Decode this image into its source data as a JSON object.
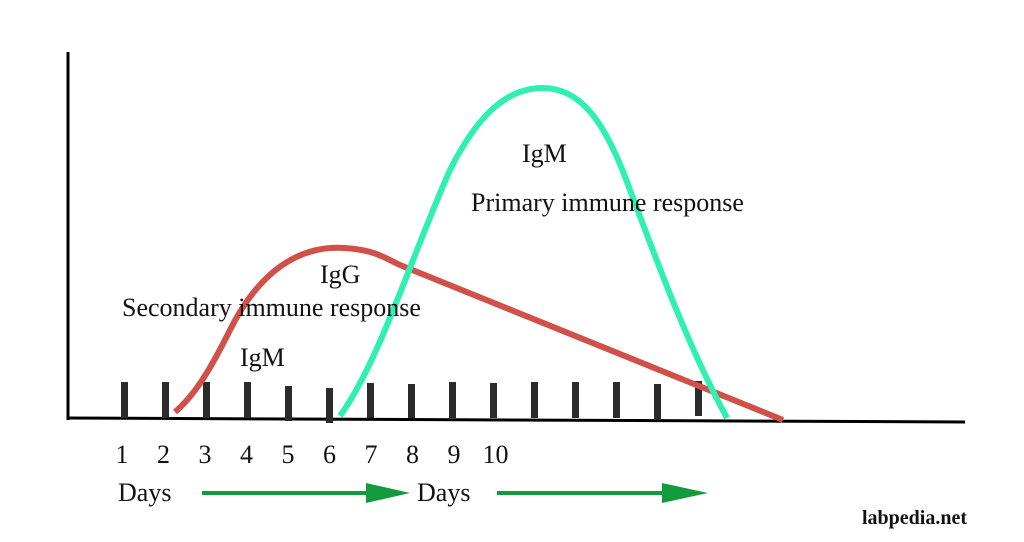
{
  "labels": {
    "primary_antibody": "IgM",
    "primary_response": "Primary immune response",
    "secondary_igg": "IgG",
    "secondary_response": "Secondary immune response",
    "secondary_igm": "IgM",
    "days_1": "Days",
    "days_2": "Days"
  },
  "day_ticks": [
    "1",
    "2",
    "3",
    "4",
    "5",
    "6",
    "7",
    "8",
    "9",
    "10"
  ],
  "watermark": "labpedia.net",
  "colors": {
    "primary_curve": "#2ff0b0",
    "secondary_curve": "#d0504a",
    "arrow": "#129b3c",
    "ticks": "#2b2b2b"
  }
}
